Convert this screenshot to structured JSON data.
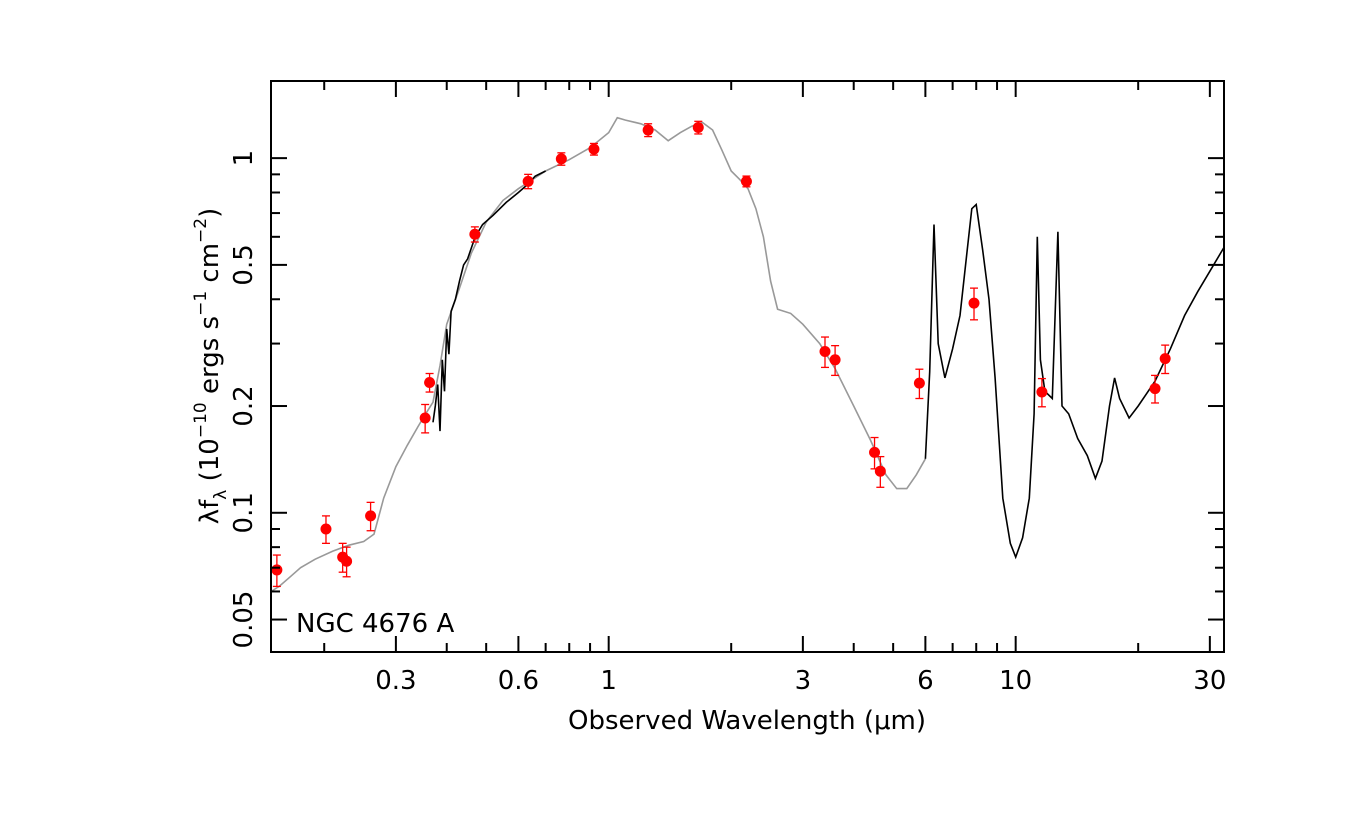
{
  "chart_data": {
    "type": "scatter",
    "title": "",
    "annotation": "NGC 4676 A",
    "xlabel": "Observed Wavelength (μm)",
    "ylabel": {
      "prefix": "λf",
      "sub": "λ",
      "open": " (10",
      "exp1": "−10",
      "mid": " ergs s",
      "exp2": "−1",
      "mid2": " cm",
      "exp3": "−2",
      "close": ")"
    },
    "xscale": "log",
    "yscale": "log",
    "xlim": [
      0.148,
      32.5
    ],
    "ylim": [
      0.0405,
      1.65
    ],
    "x_ticks": [
      {
        "value": 0.3,
        "label": "0.3"
      },
      {
        "value": 0.6,
        "label": "0.6"
      },
      {
        "value": 1,
        "label": "1"
      },
      {
        "value": 3,
        "label": "3"
      },
      {
        "value": 6,
        "label": "6"
      },
      {
        "value": 10,
        "label": "10"
      },
      {
        "value": 30,
        "label": "30"
      }
    ],
    "y_ticks": [
      {
        "value": 0.05,
        "label": "0.05"
      },
      {
        "value": 0.1,
        "label": "0.1"
      },
      {
        "value": 0.2,
        "label": "0.2"
      },
      {
        "value": 0.5,
        "label": "0.5"
      },
      {
        "value": 1,
        "label": "1"
      }
    ],
    "grid": false,
    "colors": {
      "points": "#ff0000",
      "model": "#999999",
      "observed": "#000000"
    },
    "photometry": [
      {
        "x": 0.153,
        "y": 0.069,
        "err": 0.007
      },
      {
        "x": 0.202,
        "y": 0.09,
        "err": 0.008
      },
      {
        "x": 0.222,
        "y": 0.075,
        "err": 0.007
      },
      {
        "x": 0.227,
        "y": 0.073,
        "err": 0.007
      },
      {
        "x": 0.26,
        "y": 0.098,
        "err": 0.009
      },
      {
        "x": 0.354,
        "y": 0.185,
        "err": 0.017
      },
      {
        "x": 0.363,
        "y": 0.233,
        "err": 0.014
      },
      {
        "x": 0.469,
        "y": 0.61,
        "err": 0.03
      },
      {
        "x": 0.634,
        "y": 0.86,
        "err": 0.04
      },
      {
        "x": 0.765,
        "y": 0.995,
        "err": 0.04
      },
      {
        "x": 0.92,
        "y": 1.06,
        "err": 0.04
      },
      {
        "x": 1.25,
        "y": 1.2,
        "err": 0.05
      },
      {
        "x": 1.66,
        "y": 1.22,
        "err": 0.05
      },
      {
        "x": 2.18,
        "y": 0.86,
        "err": 0.03
      },
      {
        "x": 3.4,
        "y": 0.285,
        "err": 0.028
      },
      {
        "x": 3.6,
        "y": 0.27,
        "err": 0.026
      },
      {
        "x": 4.5,
        "y": 0.148,
        "err": 0.015
      },
      {
        "x": 4.65,
        "y": 0.131,
        "err": 0.013
      },
      {
        "x": 5.8,
        "y": 0.232,
        "err": 0.022
      },
      {
        "x": 7.9,
        "y": 0.39,
        "err": 0.04
      },
      {
        "x": 11.6,
        "y": 0.219,
        "err": 0.02
      },
      {
        "x": 22.0,
        "y": 0.224,
        "err": 0.02
      },
      {
        "x": 23.3,
        "y": 0.272,
        "err": 0.025
      }
    ],
    "model_spectrum": [
      [
        0.148,
        0.06
      ],
      [
        0.155,
        0.062
      ],
      [
        0.165,
        0.066
      ],
      [
        0.175,
        0.07
      ],
      [
        0.19,
        0.074
      ],
      [
        0.21,
        0.078
      ],
      [
        0.23,
        0.081
      ],
      [
        0.25,
        0.083
      ],
      [
        0.265,
        0.087
      ],
      [
        0.28,
        0.11
      ],
      [
        0.3,
        0.135
      ],
      [
        0.32,
        0.155
      ],
      [
        0.34,
        0.175
      ],
      [
        0.355,
        0.19
      ],
      [
        0.37,
        0.205
      ],
      [
        0.385,
        0.26
      ],
      [
        0.4,
        0.34
      ],
      [
        0.43,
        0.43
      ],
      [
        0.46,
        0.54
      ],
      [
        0.5,
        0.66
      ],
      [
        0.55,
        0.76
      ],
      [
        0.6,
        0.82
      ],
      [
        0.65,
        0.87
      ],
      [
        0.7,
        0.92
      ],
      [
        0.8,
        0.99
      ],
      [
        0.9,
        1.07
      ],
      [
        1.0,
        1.18
      ],
      [
        1.05,
        1.3
      ],
      [
        1.1,
        1.28
      ],
      [
        1.2,
        1.25
      ],
      [
        1.3,
        1.2
      ],
      [
        1.4,
        1.12
      ],
      [
        1.5,
        1.18
      ],
      [
        1.6,
        1.23
      ],
      [
        1.7,
        1.26
      ],
      [
        1.8,
        1.2
      ],
      [
        1.9,
        1.05
      ],
      [
        2.0,
        0.92
      ],
      [
        2.1,
        0.87
      ],
      [
        2.2,
        0.82
      ],
      [
        2.3,
        0.72
      ],
      [
        2.4,
        0.6
      ],
      [
        2.5,
        0.45
      ],
      [
        2.6,
        0.375
      ],
      [
        2.8,
        0.365
      ],
      [
        3.0,
        0.34
      ],
      [
        3.3,
        0.3
      ],
      [
        3.6,
        0.255
      ],
      [
        4.0,
        0.2
      ],
      [
        4.4,
        0.16
      ],
      [
        4.8,
        0.128
      ],
      [
        5.1,
        0.117
      ],
      [
        5.4,
        0.117
      ],
      [
        5.7,
        0.128
      ],
      [
        6.0,
        0.142
      ]
    ],
    "observed_spectrum": [
      [
        0.37,
        0.18
      ],
      [
        0.375,
        0.2
      ],
      [
        0.38,
        0.23
      ],
      [
        0.385,
        0.17
      ],
      [
        0.39,
        0.27
      ],
      [
        0.395,
        0.22
      ],
      [
        0.4,
        0.33
      ],
      [
        0.405,
        0.28
      ],
      [
        0.41,
        0.37
      ],
      [
        0.42,
        0.4
      ],
      [
        0.43,
        0.45
      ],
      [
        0.44,
        0.5
      ],
      [
        0.45,
        0.52
      ],
      [
        0.47,
        0.6
      ],
      [
        0.49,
        0.65
      ],
      [
        0.52,
        0.69
      ],
      [
        0.56,
        0.75
      ],
      [
        0.6,
        0.8
      ],
      [
        0.63,
        0.84
      ],
      [
        0.66,
        0.89
      ],
      [
        0.7,
        0.92
      ],
      [
        6.0,
        0.142
      ],
      [
        6.15,
        0.25
      ],
      [
        6.3,
        0.65
      ],
      [
        6.45,
        0.3
      ],
      [
        6.7,
        0.24
      ],
      [
        7.0,
        0.29
      ],
      [
        7.3,
        0.36
      ],
      [
        7.6,
        0.55
      ],
      [
        7.8,
        0.72
      ],
      [
        8.0,
        0.74
      ],
      [
        8.3,
        0.55
      ],
      [
        8.6,
        0.4
      ],
      [
        8.9,
        0.24
      ],
      [
        9.3,
        0.11
      ],
      [
        9.7,
        0.082
      ],
      [
        10.0,
        0.075
      ],
      [
        10.4,
        0.085
      ],
      [
        10.8,
        0.11
      ],
      [
        11.1,
        0.19
      ],
      [
        11.3,
        0.6
      ],
      [
        11.5,
        0.27
      ],
      [
        11.8,
        0.22
      ],
      [
        12.3,
        0.21
      ],
      [
        12.7,
        0.62
      ],
      [
        13.0,
        0.2
      ],
      [
        13.5,
        0.19
      ],
      [
        14.2,
        0.162
      ],
      [
        15.0,
        0.145
      ],
      [
        15.7,
        0.125
      ],
      [
        16.3,
        0.14
      ],
      [
        17.0,
        0.2
      ],
      [
        17.5,
        0.24
      ],
      [
        18.0,
        0.21
      ],
      [
        19.0,
        0.185
      ],
      [
        20.0,
        0.2
      ],
      [
        22.0,
        0.235
      ],
      [
        24.0,
        0.29
      ],
      [
        26.0,
        0.36
      ],
      [
        28.0,
        0.42
      ],
      [
        30.0,
        0.48
      ],
      [
        32.5,
        0.56
      ]
    ]
  }
}
